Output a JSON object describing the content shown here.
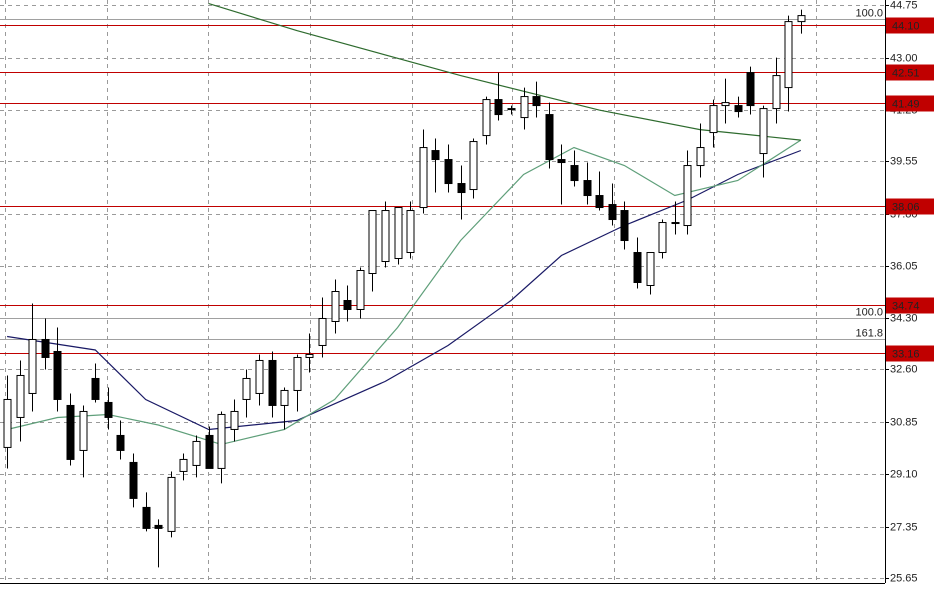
{
  "chart_data": {
    "type": "candlestick",
    "open": [
      30.0,
      31.0,
      31.8,
      33.6,
      33.2,
      31.4,
      29.9,
      32.3,
      31.5,
      30.4,
      29.5,
      28.0,
      27.4,
      27.2,
      29.2,
      29.4,
      30.4,
      29.3,
      30.6,
      31.6,
      31.8,
      32.9,
      31.4,
      31.9,
      33.0,
      33.4,
      34.2,
      34.9,
      34.6,
      35.8,
      36.2,
      36.3,
      36.5,
      38.0,
      39.9,
      39.6,
      38.8,
      38.6,
      40.4,
      41.6,
      41.3,
      41.0,
      41.7,
      41.1,
      39.6,
      39.4,
      38.9,
      38.4,
      38.1,
      37.9,
      36.5,
      35.4,
      36.5,
      37.5,
      37.4,
      39.4,
      40.5,
      41.4,
      41.4,
      42.5,
      39.8,
      41.3,
      42.0,
      44.2
    ],
    "high": [
      32.4,
      32.9,
      34.8,
      34.3,
      34.0,
      31.8,
      31.4,
      32.8,
      32.0,
      30.9,
      29.8,
      28.5,
      27.6,
      29.2,
      29.8,
      30.4,
      30.7,
      31.2,
      31.6,
      32.6,
      33.1,
      33.2,
      32.0,
      33.1,
      33.8,
      35.0,
      35.6,
      35.4,
      36.0,
      37.9,
      38.2,
      38.0,
      38.2,
      40.6,
      40.3,
      40.1,
      39.4,
      40.3,
      41.7,
      42.5,
      41.4,
      42.0,
      42.2,
      41.5,
      40.1,
      39.9,
      39.5,
      39.2,
      38.8,
      38.2,
      37.0,
      36.5,
      37.6,
      38.2,
      39.9,
      40.8,
      41.6,
      42.3,
      41.7,
      42.7,
      41.4,
      43.0,
      44.4,
      44.6
    ],
    "low": [
      29.3,
      30.2,
      31.2,
      32.6,
      31.2,
      29.4,
      29.0,
      31.5,
      30.6,
      29.6,
      28.0,
      27.2,
      26.0,
      27.0,
      28.9,
      29.0,
      29.3,
      28.8,
      30.2,
      31.0,
      31.4,
      31.0,
      30.6,
      31.2,
      32.5,
      33.0,
      33.8,
      34.2,
      34.3,
      35.2,
      36.0,
      36.1,
      36.3,
      37.8,
      38.5,
      38.5,
      37.6,
      38.3,
      40.1,
      40.9,
      41.1,
      40.6,
      41.0,
      39.3,
      38.1,
      38.7,
      38.1,
      37.9,
      37.4,
      36.6,
      35.3,
      35.1,
      36.3,
      37.1,
      37.1,
      39.0,
      40.0,
      40.8,
      41.0,
      41.1,
      39.0,
      40.8,
      41.2,
      43.8
    ],
    "close": [
      31.6,
      32.4,
      33.6,
      33.0,
      31.6,
      29.6,
      31.2,
      31.6,
      31.0,
      29.9,
      28.3,
      27.3,
      27.3,
      29.0,
      29.6,
      30.2,
      29.3,
      31.1,
      31.2,
      32.3,
      32.9,
      31.4,
      31.9,
      33.0,
      33.1,
      34.3,
      35.2,
      34.6,
      35.9,
      37.9,
      37.9,
      38.0,
      37.9,
      40.0,
      39.6,
      38.8,
      38.5,
      40.2,
      41.6,
      41.1,
      41.3,
      41.7,
      41.4,
      39.6,
      39.5,
      38.9,
      38.4,
      38.0,
      37.6,
      36.9,
      35.5,
      36.5,
      37.5,
      37.5,
      39.4,
      40.0,
      41.4,
      41.5,
      41.2,
      41.4,
      41.3,
      42.4,
      44.2,
      44.4
    ],
    "up_color": "#ffffff",
    "down_color": "#000000",
    "moving_averages": [
      {
        "color": "#1a1a66",
        "x": [
          0,
          7,
          11,
          16,
          23,
          30,
          35,
          40,
          44,
          49,
          54,
          58,
          63
        ],
        "values": [
          33.7,
          33.25,
          31.6,
          30.6,
          30.9,
          32.2,
          33.4,
          34.9,
          36.4,
          37.4,
          38.25,
          39.1,
          39.9
        ]
      },
      {
        "color": "#5f9f7a",
        "x": [
          0,
          4,
          8,
          12,
          17,
          22,
          26,
          31,
          36,
          41,
          45,
          49,
          53,
          58,
          63
        ],
        "values": [
          30.6,
          31.0,
          31.1,
          30.75,
          30.1,
          30.6,
          31.6,
          34.0,
          36.9,
          39.1,
          40.0,
          39.4,
          38.4,
          38.9,
          40.25
        ]
      },
      {
        "color": "#2e6b2e",
        "x": [
          16,
          23,
          36,
          47,
          55,
          63
        ],
        "values": [
          44.8,
          43.9,
          42.4,
          41.25,
          40.6,
          40.25
        ]
      }
    ],
    "xlim": [
      -0.56,
      69.68
    ],
    "ylim": [
      25.48,
      44.92
    ],
    "yticks": [
      44.75,
      {
        "value": 43,
        "label": "43.00"
      },
      41.25,
      39.55,
      {
        "value": 37.8,
        "label": "37.80"
      },
      36.05,
      {
        "value": 34.3,
        "label": "34.30"
      },
      {
        "value": 32.6,
        "label": "32.60"
      },
      30.85,
      {
        "value": 29.1,
        "label": "29.10"
      },
      27.35,
      25.65
    ],
    "levels": [
      {
        "value": 44.1,
        "label": "44.10"
      },
      42.51,
      41.49,
      38.06,
      34.74,
      33.16
    ],
    "level_color": "#c00000",
    "fib_levels": [
      {
        "value": 44.3,
        "label": "100.0"
      },
      {
        "value": 34.32,
        "label": "100.0"
      },
      {
        "value": 33.62,
        "label": "161.8"
      }
    ],
    "grid": true
  }
}
